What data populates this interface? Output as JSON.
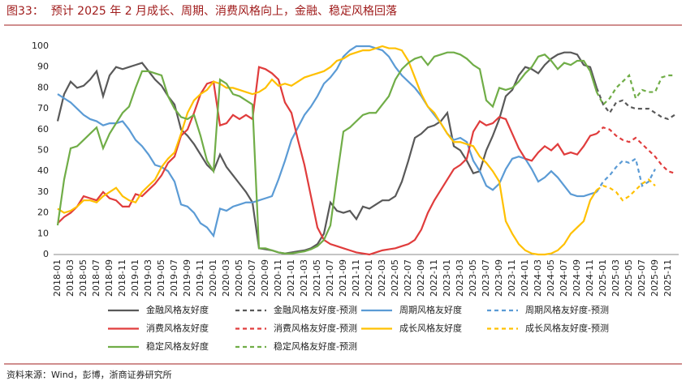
{
  "chart_data": {
    "type": "line",
    "title": "图33：  预计 2025 年 2 月成长、周期、消费风格向上，金融、稳定风格回落",
    "source": "资料来源：Wind，彭博，浙商证券研究所",
    "categories": [
      "2018-01",
      null,
      "2018-03",
      null,
      "2018-05",
      null,
      "2018-07",
      null,
      "2018-09",
      null,
      "2018-11",
      null,
      "2019-01",
      null,
      "2019-03",
      null,
      "2019-05",
      null,
      "2019-07",
      null,
      "2019-09",
      null,
      "2019-11",
      null,
      "2020-01",
      null,
      "2020-03",
      null,
      "2020-05",
      null,
      "2020-07",
      null,
      "2020-09",
      null,
      "2020-11",
      null,
      "2021-01",
      null,
      "2021-03",
      null,
      "2021-05",
      null,
      "2021-07",
      null,
      "2021-09",
      null,
      "2021-11",
      null,
      "2022-01",
      null,
      "2022-03",
      null,
      "2022-05",
      null,
      "2022-07",
      null,
      "2022-09",
      null,
      "2022-11",
      null,
      "2023-01",
      null,
      "2023-03",
      null,
      "2023-05",
      null,
      "2023-07",
      null,
      "2023-09",
      null,
      "2023-11",
      null,
      "2024-01",
      null,
      "2024-03",
      null,
      "2024-05",
      null,
      "2024-07",
      null,
      "2024-09",
      null,
      "2024-11",
      null,
      "2025-01",
      null,
      "2025-03",
      null,
      "2025-05",
      null,
      "2025-07",
      null,
      "2025-09",
      null,
      "2025-11",
      null
    ],
    "ylim": [
      0,
      100
    ],
    "yticks": [
      0,
      10,
      20,
      30,
      40,
      50,
      60,
      70,
      80,
      90,
      100
    ],
    "grid": false,
    "series": [
      {
        "name": "金融风格友好度",
        "color": "#595959",
        "dashed": false,
        "values": [
          64,
          77,
          83,
          80,
          81,
          84,
          88,
          76,
          86,
          90,
          89,
          90,
          91,
          92,
          88,
          84,
          81,
          76,
          72,
          60,
          57,
          53,
          48,
          43,
          40,
          48,
          42,
          38,
          34,
          30,
          25,
          3,
          2.5,
          2,
          1,
          0.5,
          1,
          1.5,
          2,
          3,
          5,
          10,
          25,
          21,
          20,
          21,
          17,
          23,
          22,
          24,
          26,
          26,
          28,
          35,
          45,
          56,
          58,
          61,
          62,
          64,
          68,
          52,
          50,
          45,
          39,
          40,
          50,
          57,
          65,
          76,
          79,
          86,
          90,
          89,
          87,
          91,
          94,
          96,
          97,
          97,
          96,
          91,
          90,
          80,
          null,
          null,
          null,
          null,
          null,
          null,
          null,
          null,
          null,
          null,
          null,
          null
        ]
      },
      {
        "name": "金融风格友好度-预测",
        "color": "#595959",
        "dashed": true,
        "values": [
          null,
          null,
          null,
          null,
          null,
          null,
          null,
          null,
          null,
          null,
          null,
          null,
          null,
          null,
          null,
          null,
          null,
          null,
          null,
          null,
          null,
          null,
          null,
          null,
          null,
          null,
          null,
          null,
          null,
          null,
          null,
          null,
          null,
          null,
          null,
          null,
          null,
          null,
          null,
          null,
          null,
          null,
          null,
          null,
          null,
          null,
          null,
          null,
          null,
          null,
          null,
          null,
          null,
          null,
          null,
          null,
          null,
          null,
          null,
          null,
          null,
          null,
          null,
          null,
          null,
          null,
          null,
          null,
          null,
          null,
          null,
          null,
          null,
          null,
          null,
          null,
          null,
          null,
          null,
          null,
          null,
          null,
          null,
          80,
          72,
          68,
          73,
          74,
          71,
          70,
          70,
          70,
          68,
          66,
          65,
          67
        ]
      },
      {
        "name": "周期风格友好度",
        "color": "#5b9bd5",
        "dashed": false,
        "values": [
          77,
          75,
          73,
          70,
          67,
          65,
          64,
          62,
          63,
          63,
          64,
          60,
          55,
          52,
          48,
          43,
          42,
          40,
          35,
          24,
          23,
          20,
          15,
          13,
          9,
          22,
          21,
          23,
          24,
          25,
          25,
          26,
          27,
          28,
          36,
          45,
          55,
          61,
          67,
          71,
          76,
          82,
          85,
          89,
          95,
          98,
          100,
          100,
          100,
          99,
          98,
          95,
          90,
          86,
          83,
          80,
          76,
          71,
          67,
          63,
          58,
          55,
          56,
          54,
          45,
          40,
          33,
          31,
          34,
          41,
          46,
          47,
          46,
          41,
          35,
          37,
          40,
          37,
          33,
          29,
          28,
          28,
          29,
          30,
          null,
          null,
          null,
          null,
          null,
          null,
          null,
          null,
          null,
          null,
          null,
          null
        ]
      },
      {
        "name": "周期风格友好度-预测",
        "color": "#5b9bd5",
        "dashed": true,
        "values": [
          null,
          null,
          null,
          null,
          null,
          null,
          null,
          null,
          null,
          null,
          null,
          null,
          null,
          null,
          null,
          null,
          null,
          null,
          null,
          null,
          null,
          null,
          null,
          null,
          null,
          null,
          null,
          null,
          null,
          null,
          null,
          null,
          null,
          null,
          null,
          null,
          null,
          null,
          null,
          null,
          null,
          null,
          null,
          null,
          null,
          null,
          null,
          null,
          null,
          null,
          null,
          null,
          null,
          null,
          null,
          null,
          null,
          null,
          null,
          null,
          null,
          null,
          null,
          null,
          null,
          null,
          null,
          null,
          null,
          null,
          null,
          null,
          null,
          null,
          null,
          null,
          null,
          null,
          null,
          null,
          null,
          null,
          null,
          30,
          35,
          38,
          42,
          45,
          44,
          46,
          33,
          35,
          41,
          null,
          null,
          null
        ]
      },
      {
        "name": "消费风格友好度",
        "color": "#e03c3c",
        "dashed": false,
        "values": [
          15,
          18,
          20,
          23,
          28,
          27,
          26,
          30,
          27,
          26,
          23,
          23,
          29,
          28,
          31,
          34,
          38,
          44,
          47,
          57,
          60,
          68,
          77,
          82,
          83,
          62,
          63,
          67,
          65,
          67,
          65,
          90,
          89,
          87,
          84,
          73,
          68,
          55,
          43,
          28,
          13,
          7,
          5,
          4,
          3,
          2,
          1,
          0.5,
          0,
          1,
          2,
          2.5,
          3,
          4,
          5,
          7,
          12,
          20,
          26,
          31,
          36,
          41,
          43,
          46,
          59,
          64,
          62,
          63,
          66,
          65,
          58,
          51,
          46,
          45,
          49,
          52,
          50,
          53,
          48,
          49,
          48,
          52,
          57,
          58,
          null,
          null,
          null,
          null,
          null,
          null,
          null,
          null,
          null,
          null,
          null,
          null
        ]
      },
      {
        "name": "消费风格友好度-预测",
        "color": "#e03c3c",
        "dashed": true,
        "values": [
          null,
          null,
          null,
          null,
          null,
          null,
          null,
          null,
          null,
          null,
          null,
          null,
          null,
          null,
          null,
          null,
          null,
          null,
          null,
          null,
          null,
          null,
          null,
          null,
          null,
          null,
          null,
          null,
          null,
          null,
          null,
          null,
          null,
          null,
          null,
          null,
          null,
          null,
          null,
          null,
          null,
          null,
          null,
          null,
          null,
          null,
          null,
          null,
          null,
          null,
          null,
          null,
          null,
          null,
          null,
          null,
          null,
          null,
          null,
          null,
          null,
          null,
          null,
          null,
          null,
          null,
          null,
          null,
          null,
          null,
          null,
          null,
          null,
          null,
          null,
          null,
          null,
          null,
          null,
          null,
          null,
          null,
          null,
          58,
          61,
          60,
          57,
          55,
          54,
          56,
          53,
          50,
          47,
          43,
          40,
          39
        ]
      },
      {
        "name": "成长风格友好度",
        "color": "#ffc000",
        "dashed": false,
        "values": [
          22,
          20,
          21,
          23,
          26,
          26,
          25,
          28,
          30,
          32,
          28,
          26,
          25,
          30,
          33,
          36,
          42,
          46,
          49,
          58,
          68,
          74,
          77,
          79,
          83,
          82,
          80,
          80,
          79,
          78,
          77,
          78,
          80,
          84,
          81,
          82,
          81,
          83,
          85,
          86,
          87,
          88,
          90,
          93,
          94,
          96,
          97,
          98,
          98,
          99,
          100,
          99,
          99,
          98,
          93,
          85,
          77,
          71,
          68,
          63,
          58,
          54,
          54,
          53,
          52,
          47,
          44,
          40,
          35,
          16,
          10,
          5,
          2,
          0.5,
          0,
          0,
          0.5,
          2,
          5,
          10,
          13,
          16,
          26,
          31,
          null,
          null,
          null,
          null,
          null,
          null,
          null,
          null,
          null,
          null,
          null,
          null
        ]
      },
      {
        "name": "成长风格友好度-预测",
        "color": "#ffc000",
        "dashed": true,
        "values": [
          null,
          null,
          null,
          null,
          null,
          null,
          null,
          null,
          null,
          null,
          null,
          null,
          null,
          null,
          null,
          null,
          null,
          null,
          null,
          null,
          null,
          null,
          null,
          null,
          null,
          null,
          null,
          null,
          null,
          null,
          null,
          null,
          null,
          null,
          null,
          null,
          null,
          null,
          null,
          null,
          null,
          null,
          null,
          null,
          null,
          null,
          null,
          null,
          null,
          null,
          null,
          null,
          null,
          null,
          null,
          null,
          null,
          null,
          null,
          null,
          null,
          null,
          null,
          null,
          null,
          null,
          null,
          null,
          null,
          null,
          null,
          null,
          null,
          null,
          null,
          null,
          null,
          null,
          null,
          null,
          null,
          null,
          null,
          31,
          33,
          32,
          30,
          26,
          28,
          31,
          34,
          36,
          33,
          null,
          null,
          null
        ]
      },
      {
        "name": "稳定风格友好度",
        "color": "#70ad47",
        "dashed": false,
        "values": [
          14,
          36,
          51,
          52,
          55,
          58,
          61,
          51,
          58,
          63,
          68,
          71,
          80,
          88,
          88,
          87,
          86,
          76,
          70,
          66,
          65,
          67,
          57,
          45,
          40,
          84,
          82,
          77,
          76,
          74,
          72,
          3,
          3,
          2,
          1,
          0.5,
          0.5,
          1,
          1.5,
          2.5,
          4,
          7,
          14,
          37,
          59,
          61,
          64,
          67,
          68,
          68,
          72,
          76,
          84,
          89,
          92,
          94,
          95,
          91,
          95,
          96,
          97,
          97,
          96,
          94,
          91,
          89,
          74,
          71,
          80,
          79,
          80,
          83,
          87,
          90,
          95,
          96,
          93,
          89,
          92,
          91,
          93,
          93,
          88,
          78,
          null,
          null,
          null,
          null,
          null,
          null,
          null,
          null,
          null,
          null,
          null,
          null
        ]
      },
      {
        "name": "稳定风格友好度-预测",
        "color": "#70ad47",
        "dashed": true,
        "values": [
          null,
          null,
          null,
          null,
          null,
          null,
          null,
          null,
          null,
          null,
          null,
          null,
          null,
          null,
          null,
          null,
          null,
          null,
          null,
          null,
          null,
          null,
          null,
          null,
          null,
          null,
          null,
          null,
          null,
          null,
          null,
          null,
          null,
          null,
          null,
          null,
          null,
          null,
          null,
          null,
          null,
          null,
          null,
          null,
          null,
          null,
          null,
          null,
          null,
          null,
          null,
          null,
          null,
          null,
          null,
          null,
          null,
          null,
          null,
          null,
          null,
          null,
          null,
          null,
          null,
          null,
          null,
          null,
          null,
          null,
          null,
          null,
          null,
          null,
          null,
          null,
          null,
          null,
          null,
          null,
          null,
          null,
          null,
          78,
          72,
          75,
          80,
          83,
          86,
          75,
          79,
          78,
          78,
          85,
          86,
          86
        ]
      }
    ]
  }
}
